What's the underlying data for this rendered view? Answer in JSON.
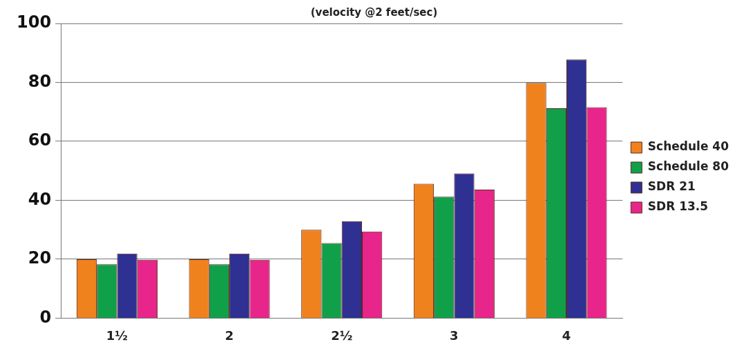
{
  "chart_data": {
    "type": "bar",
    "title": "(velocity @2 feet/sec)",
    "categories": [
      "1½",
      "2",
      "2½",
      "3",
      "4"
    ],
    "series": [
      {
        "name": "Schedule 40",
        "color": "#f0821e",
        "values": [
          20,
          20,
          30,
          45.6,
          79.8
        ]
      },
      {
        "name": "Schedule 80",
        "color": "#11a04a",
        "values": [
          18.3,
          18.3,
          25.5,
          41.2,
          71.2
        ]
      },
      {
        "name": "SDR 21",
        "color": "#2e3192",
        "values": [
          21.9,
          21.9,
          32.9,
          49.1,
          87.8
        ]
      },
      {
        "name": "SDR 13.5",
        "color": "#e8258a",
        "values": [
          19.8,
          19.8,
          29.4,
          43.6,
          71.6
        ]
      }
    ],
    "ylim": [
      0,
      100
    ],
    "yticks": [
      0,
      20,
      40,
      60,
      80,
      100
    ],
    "grid": "y",
    "legend": "right"
  }
}
